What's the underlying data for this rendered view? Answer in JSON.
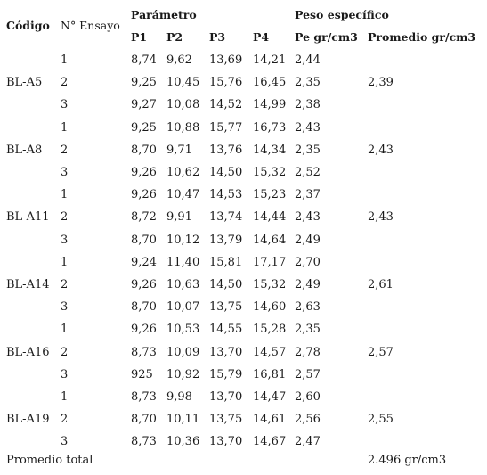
{
  "headers": {
    "codigo": "Código",
    "ensayo": "N° Ensayo",
    "parametro": "Parámetro",
    "peso": "Peso específico",
    "p1": "P1",
    "p2": "P2",
    "p3": "P3",
    "p4": "P4",
    "pe": "Pe gr/cm3",
    "promedio": "Promedio gr/cm3"
  },
  "rows": [
    {
      "codigo": "",
      "ensayo": "1",
      "p1": "8,74",
      "p2": "9,62",
      "p3": "13,69",
      "p4": "14,21",
      "pe": "2,44",
      "promedio": ""
    },
    {
      "codigo": "BL-A5",
      "ensayo": "2",
      "p1": "9,25",
      "p2": "10,45",
      "p3": "15,76",
      "p4": "16,45",
      "pe": "2,35",
      "promedio": "2,39"
    },
    {
      "codigo": "",
      "ensayo": "3",
      "p1": "9,27",
      "p2": "10,08",
      "p3": "14,52",
      "p4": "14,99",
      "pe": "2,38",
      "promedio": ""
    },
    {
      "codigo": "",
      "ensayo": "1",
      "p1": "9,25",
      "p2": "10,88",
      "p3": "15,77",
      "p4": "16,73",
      "pe": "2,43",
      "promedio": ""
    },
    {
      "codigo": "BL-A8",
      "ensayo": "2",
      "p1": "8,70",
      "p2": "9,71",
      "p3": "13,76",
      "p4": "14,34",
      "pe": "2,35",
      "promedio": "2,43"
    },
    {
      "codigo": "",
      "ensayo": "3",
      "p1": "9,26",
      "p2": "10,62",
      "p3": "14,50",
      "p4": "15,32",
      "pe": "2,52",
      "promedio": ""
    },
    {
      "codigo": "",
      "ensayo": "1",
      "p1": "9,26",
      "p2": "10,47",
      "p3": "14,53",
      "p4": "15,23",
      "pe": "2,37",
      "promedio": ""
    },
    {
      "codigo": "BL-A11",
      "ensayo": "2",
      "p1": "8,72",
      "p2": "9,91",
      "p3": "13,74",
      "p4": "14,44",
      "pe": "2,43",
      "promedio": "2,43"
    },
    {
      "codigo": "",
      "ensayo": "3",
      "p1": "8,70",
      "p2": "10,12",
      "p3": "13,79",
      "p4": "14,64",
      "pe": "2,49",
      "promedio": ""
    },
    {
      "codigo": "",
      "ensayo": "1",
      "p1": "9,24",
      "p2": "11,40",
      "p3": "15,81",
      "p4": "17,17",
      "pe": "2,70",
      "promedio": ""
    },
    {
      "codigo": "BL-A14",
      "ensayo": "2",
      "p1": "9,26",
      "p2": "10,63",
      "p3": "14,50",
      "p4": "15,32",
      "pe": "2,49",
      "promedio": "2,61"
    },
    {
      "codigo": "",
      "ensayo": "3",
      "p1": "8,70",
      "p2": "10,07",
      "p3": "13,75",
      "p4": "14,60",
      "pe": "2,63",
      "promedio": ""
    },
    {
      "codigo": "",
      "ensayo": "1",
      "p1": "9,26",
      "p2": "10,53",
      "p3": "14,55",
      "p4": "15,28",
      "pe": "2,35",
      "promedio": ""
    },
    {
      "codigo": "BL-A16",
      "ensayo": "2",
      "p1": "8,73",
      "p2": "10,09",
      "p3": "13,70",
      "p4": "14,57",
      "pe": "2,78",
      "promedio": "2,57"
    },
    {
      "codigo": "",
      "ensayo": "3",
      "p1": "925",
      "p2": "10,92",
      "p3": "15,79",
      "p4": "16,81",
      "pe": "2,57",
      "promedio": ""
    },
    {
      "codigo": "",
      "ensayo": "1",
      "p1": "8,73",
      "p2": "9,98",
      "p3": "13,70",
      "p4": "14,47",
      "pe": "2,60",
      "promedio": ""
    },
    {
      "codigo": "BL-A19",
      "ensayo": "2",
      "p1": "8,70",
      "p2": "10,11",
      "p3": "13,75",
      "p4": "14,61",
      "pe": "2,56",
      "promedio": "2,55"
    },
    {
      "codigo": "",
      "ensayo": "3",
      "p1": "8,73",
      "p2": "10,36",
      "p3": "13,70",
      "p4": "14,67",
      "pe": "2,47",
      "promedio": ""
    }
  ],
  "footer": {
    "label": "Promedio total",
    "value": "2.496 gr/cm3"
  }
}
